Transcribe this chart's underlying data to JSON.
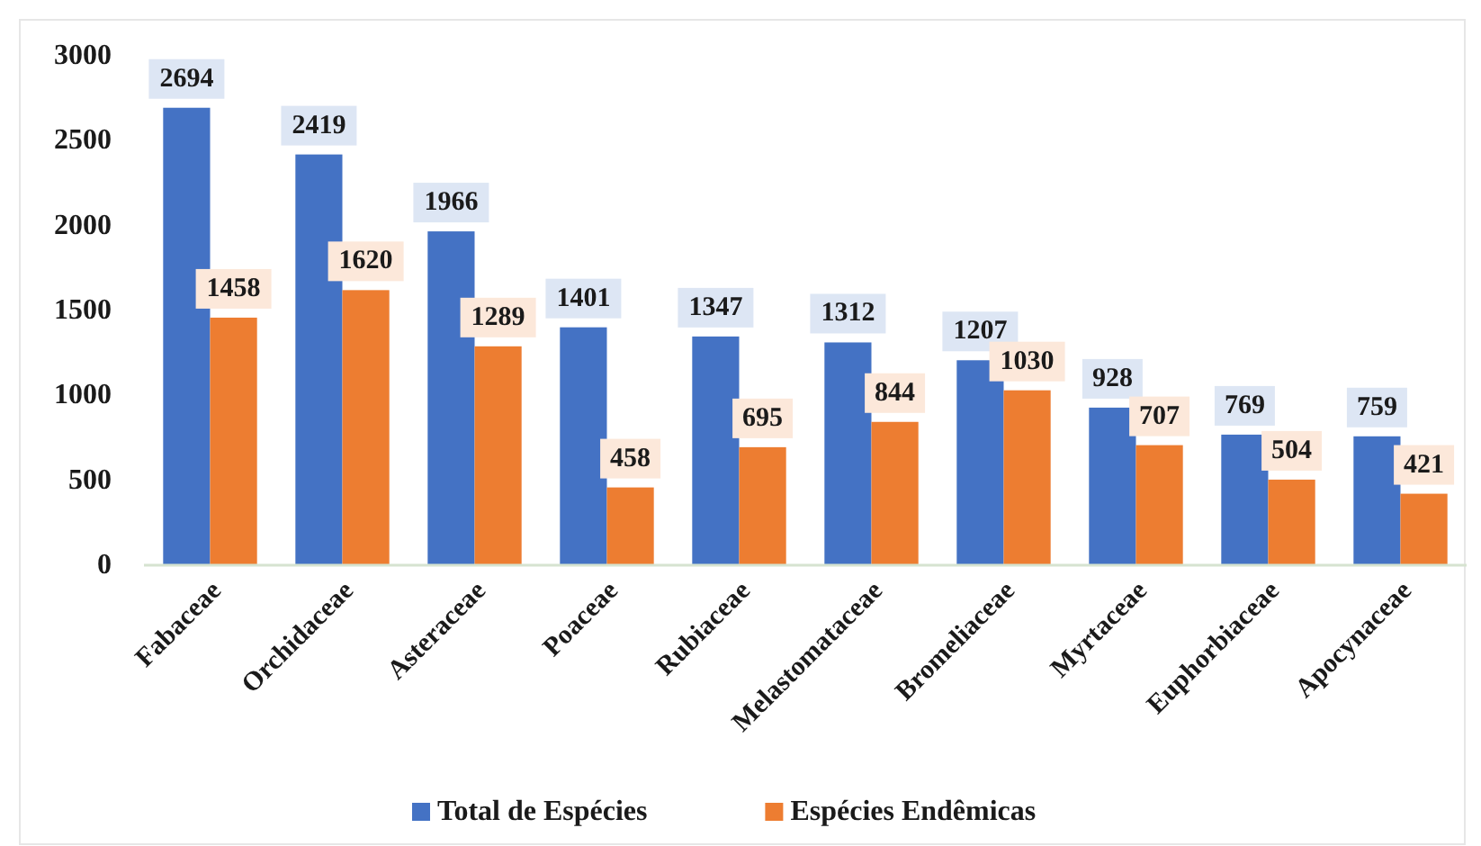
{
  "chart_data": {
    "type": "bar",
    "categories": [
      "Fabaceae",
      "Orchidaceae",
      "Asteraceae",
      "Poaceae",
      "Rubiaceae",
      "Melastomataceae",
      "Bromeliaceae",
      "Myrtaceae",
      "Euphorbiaceae",
      "Apocynaceae"
    ],
    "series": [
      {
        "name": "Total de Espécies",
        "color": "#4472c4",
        "values": [
          2694,
          2419,
          1966,
          1401,
          1347,
          1312,
          1207,
          928,
          769,
          759
        ]
      },
      {
        "name": "Espécies Endêmicas",
        "color": "#ed7d31",
        "values": [
          1458,
          1620,
          1289,
          458,
          695,
          844,
          1030,
          707,
          504,
          421
        ]
      }
    ],
    "ylim": [
      0,
      3000
    ],
    "yticks": [
      0,
      500,
      1000,
      1500,
      2000,
      2500,
      3000
    ],
    "data_labels": true,
    "legend": "bottom"
  }
}
